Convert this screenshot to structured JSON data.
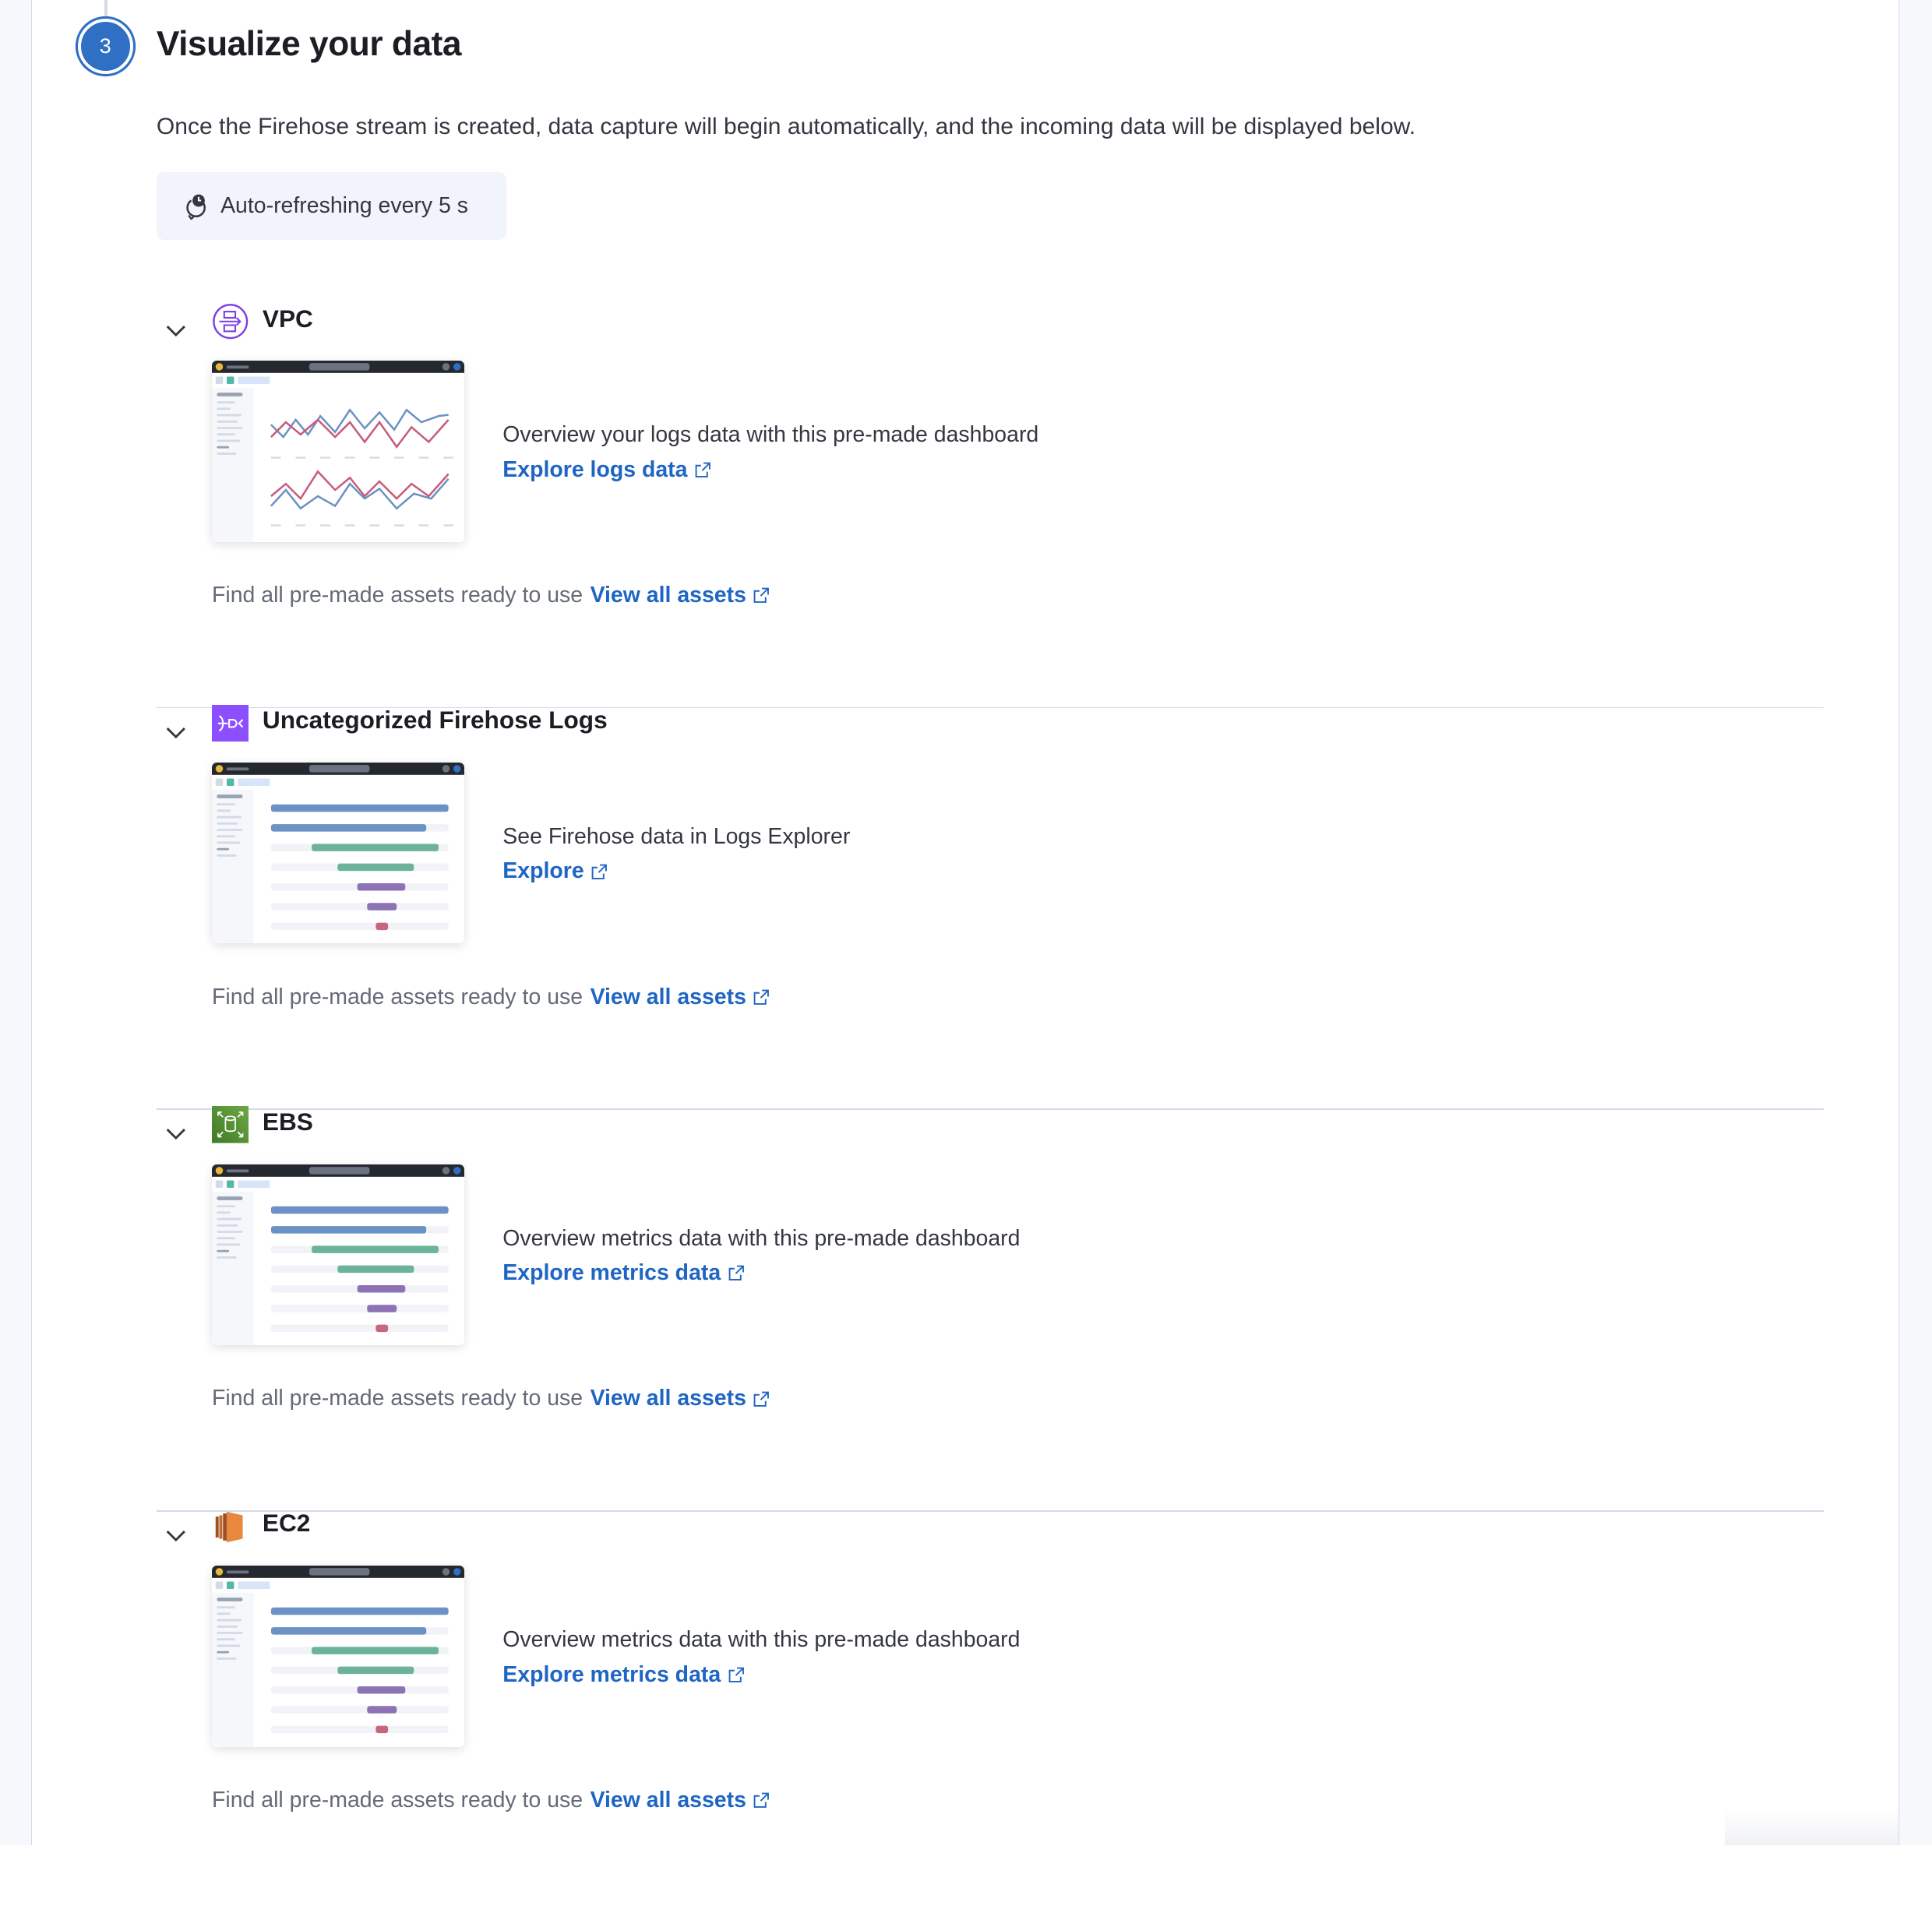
{
  "step": {
    "number": "3",
    "title": "Visualize your data"
  },
  "description": "Once the Firehose stream is created, data capture will begin automatically, and the incoming data will be displayed below.",
  "auto_refresh": {
    "label": "Auto-refreshing every 5 s",
    "icon": "refresh-clock-icon"
  },
  "colors": {
    "accent": "#1f65c4",
    "step": "#2f6fc4",
    "vpc": "#7b3fe4",
    "firehose": "#8c4fff",
    "ebs": "#4f8b2c",
    "ec2": "#e8873e"
  },
  "sections": [
    {
      "title": "VPC",
      "icon": "vpc-icon",
      "thumbnail": "line-chart",
      "text": "Overview your logs data with this pre-made dashboard",
      "link": "Explore logs data",
      "footer_text": "Find all pre-made assets ready to use",
      "footer_link": "View all assets"
    },
    {
      "title": "Uncategorized Firehose Logs",
      "icon": "firehose-icon",
      "thumbnail": "bar-list",
      "text": "See Firehose data in Logs Explorer",
      "link": "Explore",
      "footer_text": "Find all pre-made assets ready to use",
      "footer_link": "View all assets"
    },
    {
      "title": "EBS",
      "icon": "ebs-icon",
      "thumbnail": "bar-list",
      "text": "Overview metrics data with this pre-made dashboard",
      "link": "Explore metrics data",
      "footer_text": "Find all pre-made assets ready to use",
      "footer_link": "View all assets"
    },
    {
      "title": "EC2",
      "icon": "ec2-icon",
      "thumbnail": "bar-list",
      "text": "Overview metrics data with this pre-made dashboard",
      "link": "Explore metrics data",
      "footer_text": "Find all pre-made assets ready to use",
      "footer_link": "View all assets"
    }
  ]
}
